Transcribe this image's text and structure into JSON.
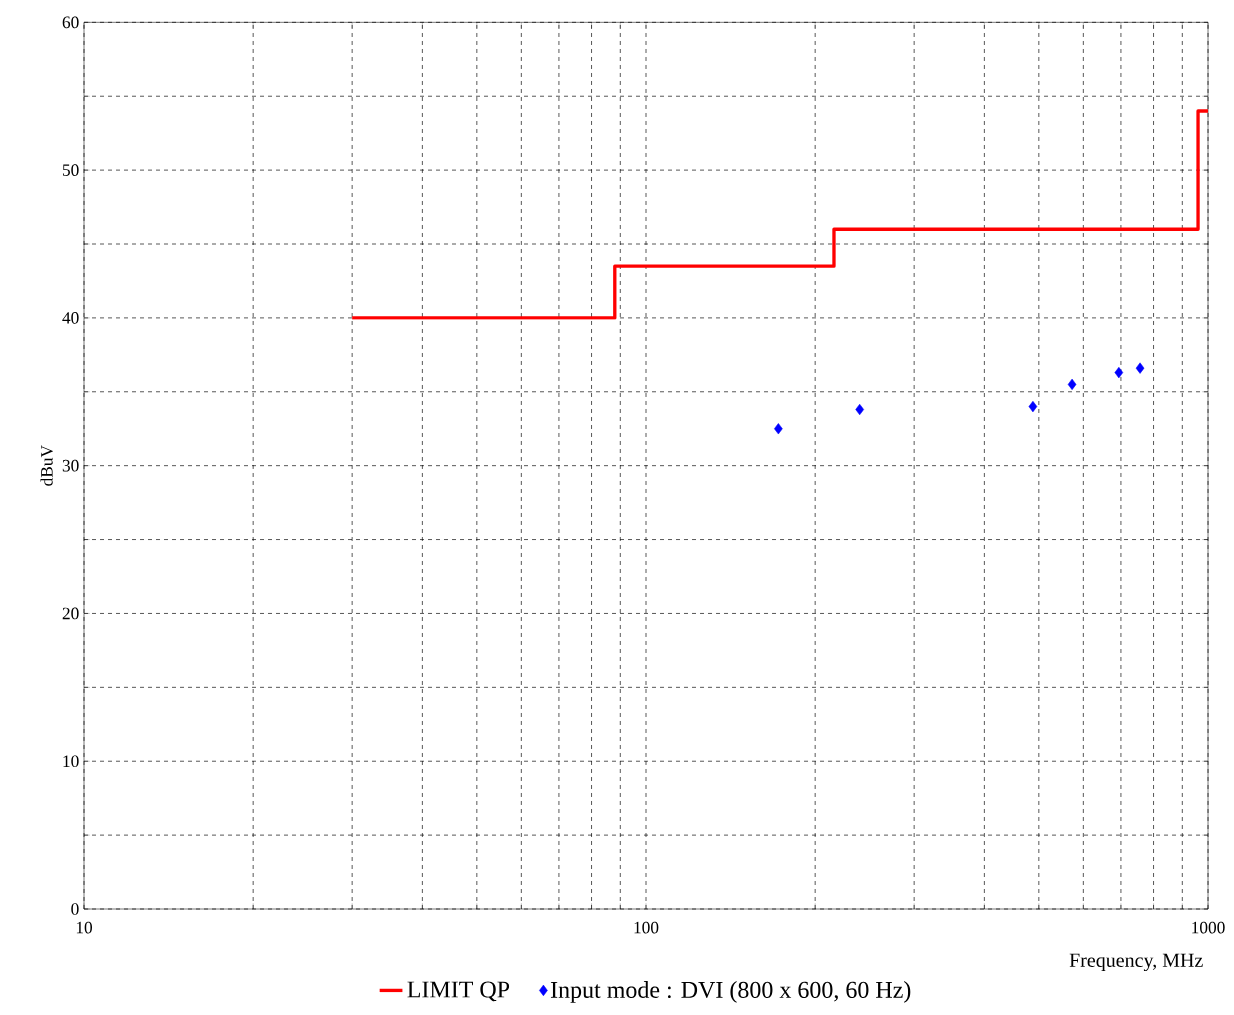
{
  "chart_data": {
    "type": "scatter",
    "xlabel": "Frequency, MHz",
    "ylabel": "dBuV",
    "log": "x",
    "xlim": [
      10,
      1000
    ],
    "ylim": [
      0,
      60
    ],
    "xticks": [
      10,
      {
        "value": 20,
        "label": null
      },
      {
        "value": 30,
        "label": null
      },
      {
        "value": 40,
        "label": null
      },
      {
        "value": 50,
        "label": null
      },
      {
        "value": 60,
        "label": null
      },
      {
        "value": 70,
        "label": null
      },
      {
        "value": 80,
        "label": null
      },
      {
        "value": 90,
        "label": null
      },
      100,
      {
        "value": 200,
        "label": null
      },
      {
        "value": 300,
        "label": null
      },
      {
        "value": 400,
        "label": null
      },
      {
        "value": 500,
        "label": null
      },
      {
        "value": 600,
        "label": null
      },
      {
        "value": 700,
        "label": null
      },
      {
        "value": 800,
        "label": null
      },
      {
        "value": 900,
        "label": null
      },
      1000
    ],
    "yticks": [
      0,
      {
        "value": 5,
        "label": null
      },
      10,
      {
        "value": 15,
        "label": null
      },
      20,
      {
        "value": 25,
        "label": null
      },
      30,
      {
        "value": 35,
        "label": null
      },
      40,
      {
        "value": 45,
        "label": null
      },
      50,
      {
        "value": 55,
        "label": null
      },
      60
    ],
    "grid": true,
    "legend": "bottom",
    "series": [
      {
        "name": "LIMIT QP",
        "type": "step",
        "marker": "none",
        "color": "#ff0000",
        "x": [
          30,
          88,
          216,
          960,
          1000
        ],
        "values": [
          40,
          43.5,
          46,
          54,
          54
        ]
      },
      {
        "name": "Input mode : DVI (800 x 600, 60 Hz)",
        "marker": "diamond",
        "color": "#0000ff",
        "x": [
          172,
          240,
          488,
          573,
          694,
          757
        ],
        "values": [
          32.5,
          33.8,
          34.0,
          35.5,
          36.3,
          36.6
        ]
      }
    ]
  }
}
